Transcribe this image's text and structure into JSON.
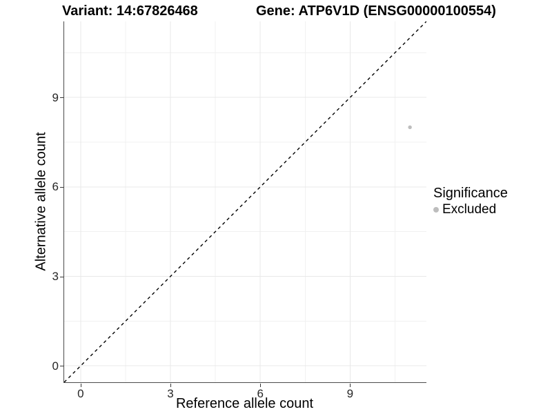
{
  "titles": {
    "left": "Variant: 14:67826468",
    "right": "Gene: ATP6V1D (ENSG00000100554)"
  },
  "chart_data": {
    "type": "scatter",
    "xlabel": "Reference allele count",
    "ylabel": "Alternative allele count",
    "xlim": [
      -0.55,
      11.55
    ],
    "ylim": [
      -0.55,
      11.55
    ],
    "x_ticks": [
      0,
      3,
      6,
      9
    ],
    "y_ticks": [
      0,
      3,
      6,
      9
    ],
    "x_minor_ticks": [
      1.5,
      4.5,
      7.5,
      10.5
    ],
    "y_minor_ticks": [
      1.5,
      4.5,
      7.5,
      10.5
    ],
    "grid": true,
    "points": [
      {
        "x": 11,
        "y": 8,
        "significance": "Excluded"
      }
    ],
    "reference_line": {
      "slope": 1,
      "intercept": 0,
      "style": "dashed",
      "color": "#000000"
    },
    "legend": {
      "title": "Significance",
      "position": "right",
      "items": [
        {
          "label": "Excluded",
          "color": "#bdbdbd"
        }
      ]
    },
    "colors": {
      "point": "#bdbdbd",
      "grid_major": "#e8e8e8",
      "grid_minor": "#f1f1f1",
      "axis_line": "#4a4a4a",
      "tick_mark": "#333333"
    }
  }
}
